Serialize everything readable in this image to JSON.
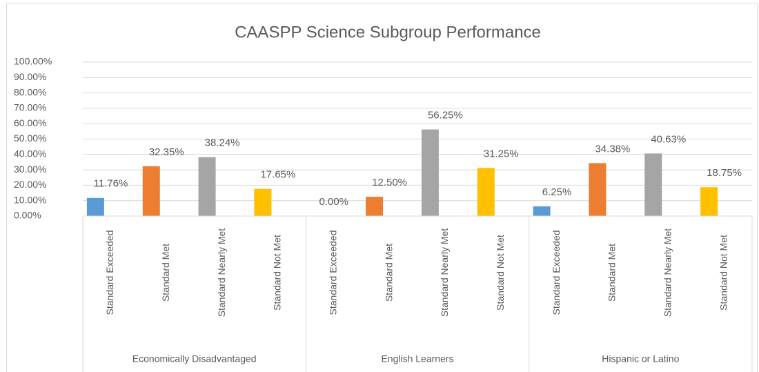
{
  "chart_data": {
    "type": "bar",
    "title": "CAASPP Science Subgroup Performance",
    "colors": [
      "#5b9bd5",
      "#ed7d31",
      "#a5a5a5",
      "#ffc000"
    ],
    "groups": [
      {
        "name": "Economically Disadvantaged",
        "categories": [
          "Standard Exceeded",
          "Standard Met",
          "Standard Nearly Met",
          "Standard Not Met"
        ],
        "values": [
          11.76,
          32.35,
          38.24,
          17.65
        ],
        "value_labels": [
          "11.76%",
          "32.35%",
          "38.24%",
          "17.65%"
        ]
      },
      {
        "name": "English Learners",
        "categories": [
          "Standard Exceeded",
          "Standard Met",
          "Standard Nearly Met",
          "Standard Not Met"
        ],
        "values": [
          0,
          12.5,
          56.25,
          31.25
        ],
        "value_labels": [
          "0.00%",
          "12.50%",
          "56.25%",
          "31.25%"
        ]
      },
      {
        "name": "Hispanic or Latino",
        "categories": [
          "Standard Exceeded",
          "Standard Met",
          "Standard Nearly Met",
          "Standard Not Met"
        ],
        "values": [
          6.25,
          34.38,
          40.63,
          18.75
        ],
        "value_labels": [
          "6.25%",
          "34.38%",
          "40.63%",
          "18.75%"
        ]
      }
    ],
    "ylim": [
      0,
      100
    ],
    "yticks": [
      {
        "value": 0,
        "label": "0.00%"
      },
      {
        "value": 10,
        "label": "10.00%"
      },
      {
        "value": 20,
        "label": "20.00%"
      },
      {
        "value": 30,
        "label": "30.00%"
      },
      {
        "value": 40,
        "label": "40.00%"
      },
      {
        "value": 50,
        "label": "50.00%"
      },
      {
        "value": 60,
        "label": "60.00%"
      },
      {
        "value": 70,
        "label": "70.00%"
      },
      {
        "value": 80,
        "label": "80.00%"
      },
      {
        "value": 90,
        "label": "90.00%"
      },
      {
        "value": 100,
        "label": "100.00%"
      }
    ],
    "grid": true
  }
}
